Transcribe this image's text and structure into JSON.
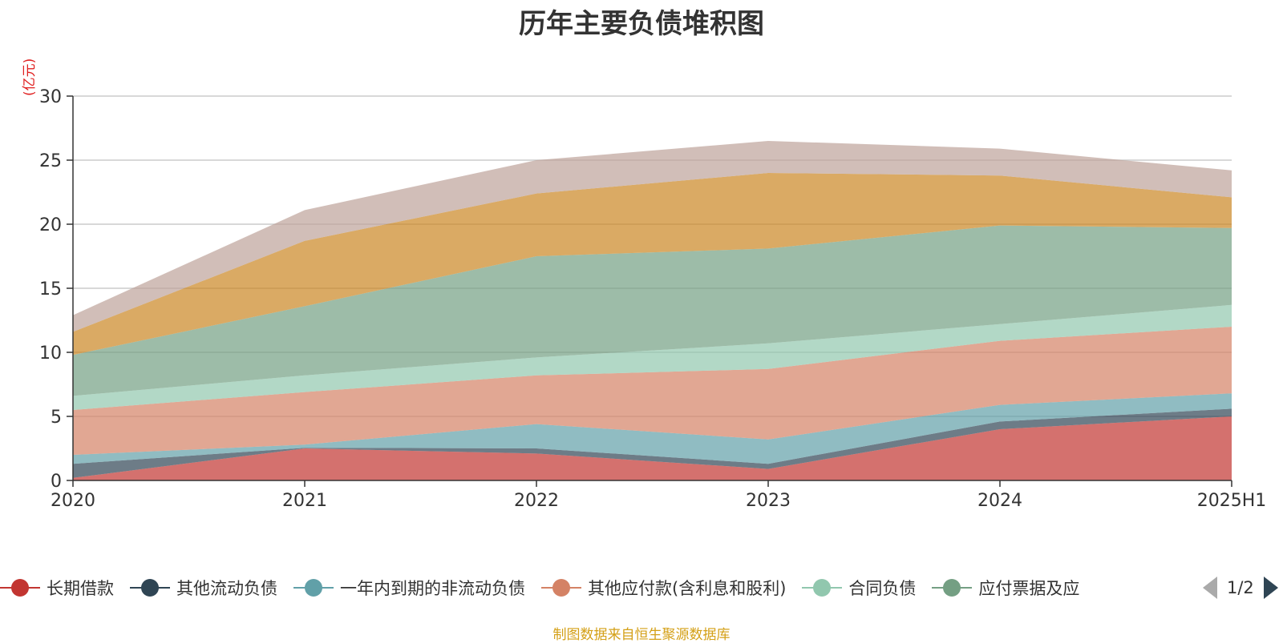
{
  "chart_data": {
    "type": "area",
    "stacked": true,
    "title": "历年主要负债堆积图",
    "ylabel": "(亿元)",
    "ylim": [
      0,
      30
    ],
    "yticks": [
      0,
      5,
      10,
      15,
      20,
      25,
      30
    ],
    "grid": true,
    "x": [
      "2020",
      "2021",
      "2022",
      "2023",
      "2024",
      "2025H1"
    ],
    "series": [
      {
        "name": "长期借款",
        "color": "#c23531",
        "values": [
          0.2,
          2.5,
          2.1,
          0.9,
          4.0,
          5.0
        ]
      },
      {
        "name": "其他流动负债",
        "color": "#2f4554",
        "values": [
          1.1,
          0.05,
          0.4,
          0.4,
          0.6,
          0.6
        ]
      },
      {
        "name": "一年内到期的非流动负债",
        "color": "#61a0a8",
        "values": [
          0.7,
          0.25,
          1.9,
          1.9,
          1.3,
          1.2
        ]
      },
      {
        "name": "其他应付款(含利息和股利)",
        "color": "#d48265",
        "values": [
          3.5,
          4.1,
          3.8,
          5.5,
          5.0,
          5.2
        ]
      },
      {
        "name": "合同负债",
        "color": "#91c7ae",
        "values": [
          1.1,
          1.3,
          1.4,
          2.0,
          1.3,
          1.7
        ]
      },
      {
        "name": "应付票据及应付账款",
        "color": "#749f83",
        "values": [
          3.2,
          5.4,
          7.9,
          7.4,
          7.7,
          6.0
        ]
      },
      {
        "name": "",
        "color": "#ca8622",
        "values": [
          1.8,
          5.1,
          4.9,
          5.9,
          3.9,
          2.4
        ]
      },
      {
        "name": "",
        "color": "#bda29a",
        "values": [
          1.3,
          2.4,
          2.6,
          2.5,
          2.1,
          2.1
        ]
      }
    ]
  },
  "legend": {
    "items": [
      {
        "label": "长期借款",
        "color": "#c23531"
      },
      {
        "label": "其他流动负债",
        "color": "#2f4554"
      },
      {
        "label": "一年内到期的非流动负债",
        "color": "#61a0a8"
      },
      {
        "label": "其他应付款(含利息和股利)",
        "color": "#d48265"
      },
      {
        "label": "合同负债",
        "color": "#91c7ae"
      },
      {
        "label": "应付票据及应",
        "color": "#749f83"
      }
    ],
    "page": "1/2",
    "prev_icon": "triangle-left-icon",
    "next_icon": "triangle-right-icon"
  },
  "source": "制图数据来自恒生聚源数据库"
}
